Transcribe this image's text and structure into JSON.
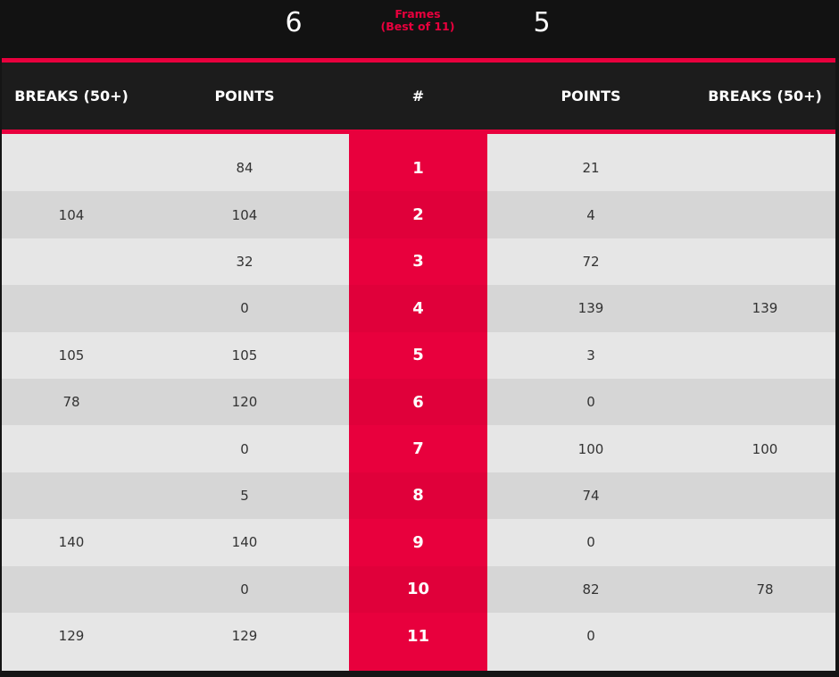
{
  "header": {
    "left_score": "6",
    "right_score": "5",
    "frames_label": "Frames",
    "best_of_label": "(Best of 11)"
  },
  "columns": [
    "BREAKS (50+)",
    "POINTS",
    "#",
    "POINTS",
    "BREAKS (50+)"
  ],
  "colors": {
    "accent": "#e8003d",
    "background": "#121212"
  },
  "rows": [
    {
      "left_breaks": "",
      "left_points": "84",
      "frame": "1",
      "right_points": "21",
      "right_breaks": ""
    },
    {
      "left_breaks": "104",
      "left_points": "104",
      "frame": "2",
      "right_points": "4",
      "right_breaks": ""
    },
    {
      "left_breaks": "",
      "left_points": "32",
      "frame": "3",
      "right_points": "72",
      "right_breaks": ""
    },
    {
      "left_breaks": "",
      "left_points": "0",
      "frame": "4",
      "right_points": "139",
      "right_breaks": "139"
    },
    {
      "left_breaks": "105",
      "left_points": "105",
      "frame": "5",
      "right_points": "3",
      "right_breaks": ""
    },
    {
      "left_breaks": "78",
      "left_points": "120",
      "frame": "6",
      "right_points": "0",
      "right_breaks": ""
    },
    {
      "left_breaks": "",
      "left_points": "0",
      "frame": "7",
      "right_points": "100",
      "right_breaks": "100"
    },
    {
      "left_breaks": "",
      "left_points": "5",
      "frame": "8",
      "right_points": "74",
      "right_breaks": ""
    },
    {
      "left_breaks": "140",
      "left_points": "140",
      "frame": "9",
      "right_points": "0",
      "right_breaks": ""
    },
    {
      "left_breaks": "",
      "left_points": "0",
      "frame": "10",
      "right_points": "82",
      "right_breaks": "78"
    },
    {
      "left_breaks": "129",
      "left_points": "129",
      "frame": "11",
      "right_points": "0",
      "right_breaks": ""
    }
  ]
}
